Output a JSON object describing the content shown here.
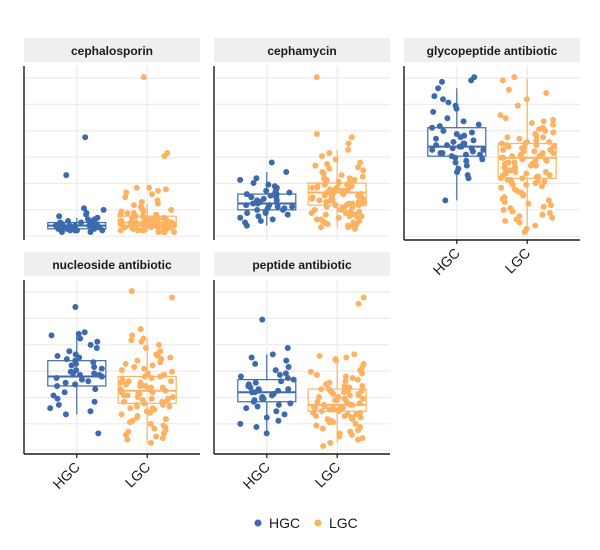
{
  "chart_data": {
    "type": "scatter",
    "subtype": "faceted boxplot with jittered points",
    "title": "",
    "xlabel": "",
    "ylabel": "",
    "grid": true,
    "y_tick_labels_shown": false,
    "legend": {
      "position": "bottom",
      "entries": [
        "HGC",
        "LGC"
      ]
    },
    "colors": {
      "HGC": "#3d6aad",
      "LGC": "#fdb262",
      "strip_bg": "#efefef"
    },
    "categories": [
      "HGC",
      "LGC"
    ],
    "facets": [
      {
        "label": "cephalosporin",
        "ylim": [
          0,
          1
        ],
        "boxes": [
          {
            "group": "HGC",
            "q1": 0.02,
            "median": 0.04,
            "q3": 0.06,
            "whisker_low": 0.0,
            "whisker_high": 0.09
          },
          {
            "group": "LGC",
            "q1": 0.04,
            "median": 0.06,
            "q3": 0.1,
            "whisker_low": 0.0,
            "whisker_high": 0.18
          }
        ],
        "series": [
          {
            "name": "HGC",
            "values": [
              0.6,
              0.36,
              0.15,
              0.14,
              0.12,
              0.11,
              0.1,
              0.09,
              0.08,
              0.08,
              0.07,
              0.07,
              0.06,
              0.06,
              0.06,
              0.05,
              0.05,
              0.05,
              0.05,
              0.04,
              0.04,
              0.04,
              0.04,
              0.04,
              0.03,
              0.03,
              0.03,
              0.03,
              0.03,
              0.02,
              0.02,
              0.02,
              0.02,
              0.02,
              0.01,
              0.01,
              0.01,
              0.01,
              0.0,
              0.0
            ]
          },
          {
            "name": "LGC",
            "values": [
              0.98,
              0.5,
              0.48,
              0.28,
              0.28,
              0.27,
              0.26,
              0.25,
              0.24,
              0.22,
              0.2,
              0.19,
              0.18,
              0.17,
              0.16,
              0.15,
              0.14,
              0.14,
              0.13,
              0.13,
              0.12,
              0.12,
              0.11,
              0.11,
              0.1,
              0.1,
              0.1,
              0.09,
              0.09,
              0.09,
              0.08,
              0.08,
              0.08,
              0.08,
              0.07,
              0.07,
              0.07,
              0.07,
              0.07,
              0.06,
              0.06,
              0.06,
              0.06,
              0.06,
              0.06,
              0.05,
              0.05,
              0.05,
              0.05,
              0.05,
              0.05,
              0.05,
              0.04,
              0.04,
              0.04,
              0.04,
              0.04,
              0.04,
              0.04,
              0.03,
              0.03,
              0.03,
              0.03,
              0.03,
              0.03,
              0.02,
              0.02,
              0.02,
              0.02,
              0.02,
              0.02,
              0.01,
              0.01,
              0.01,
              0.01,
              0.01,
              0.0,
              0.0,
              0.0,
              0.0
            ]
          }
        ]
      },
      {
        "label": "cephamycin",
        "ylim": [
          0,
          1
        ],
        "boxes": [
          {
            "group": "HGC",
            "q1": 0.14,
            "median": 0.18,
            "q3": 0.24,
            "whisker_low": 0.04,
            "whisker_high": 0.38
          },
          {
            "group": "LGC",
            "q1": 0.17,
            "median": 0.25,
            "q3": 0.31,
            "whisker_low": 0.03,
            "whisker_high": 0.52
          }
        ],
        "series": [
          {
            "name": "HGC",
            "values": [
              0.44,
              0.38,
              0.34,
              0.33,
              0.31,
              0.3,
              0.29,
              0.28,
              0.27,
              0.26,
              0.25,
              0.25,
              0.24,
              0.24,
              0.23,
              0.22,
              0.22,
              0.21,
              0.2,
              0.2,
              0.19,
              0.19,
              0.18,
              0.18,
              0.17,
              0.17,
              0.16,
              0.16,
              0.15,
              0.15,
              0.14,
              0.14,
              0.13,
              0.12,
              0.12,
              0.11,
              0.1,
              0.09,
              0.08,
              0.07,
              0.06,
              0.04
            ]
          },
          {
            "name": "LGC",
            "values": [
              0.98,
              0.62,
              0.6,
              0.56,
              0.52,
              0.5,
              0.48,
              0.46,
              0.44,
              0.43,
              0.42,
              0.41,
              0.4,
              0.39,
              0.38,
              0.37,
              0.36,
              0.35,
              0.34,
              0.34,
              0.33,
              0.33,
              0.32,
              0.32,
              0.31,
              0.31,
              0.3,
              0.3,
              0.3,
              0.29,
              0.29,
              0.28,
              0.28,
              0.28,
              0.27,
              0.27,
              0.27,
              0.26,
              0.26,
              0.26,
              0.25,
              0.25,
              0.25,
              0.25,
              0.24,
              0.24,
              0.24,
              0.23,
              0.23,
              0.23,
              0.22,
              0.22,
              0.22,
              0.21,
              0.21,
              0.21,
              0.2,
              0.2,
              0.2,
              0.19,
              0.19,
              0.19,
              0.18,
              0.18,
              0.18,
              0.17,
              0.17,
              0.17,
              0.16,
              0.16,
              0.15,
              0.15,
              0.14,
              0.14,
              0.13,
              0.13,
              0.12,
              0.12,
              0.11,
              0.11,
              0.1,
              0.1,
              0.09,
              0.09,
              0.08,
              0.08,
              0.07,
              0.07,
              0.06,
              0.06,
              0.05,
              0.05,
              0.04,
              0.04,
              0.03,
              0.03,
              0.02
            ]
          }
        ]
      },
      {
        "label": "glycopeptide antibiotic",
        "ylim": [
          0,
          1
        ],
        "boxes": [
          {
            "group": "HGC",
            "q1": 0.48,
            "median": 0.54,
            "q3": 0.66,
            "whisker_low": 0.2,
            "whisker_high": 0.91
          },
          {
            "group": "LGC",
            "q1": 0.34,
            "median": 0.47,
            "q3": 0.56,
            "whisker_low": 0.0,
            "whisker_high": 0.97
          }
        ],
        "series": [
          {
            "name": "HGC",
            "values": [
              0.98,
              0.96,
              0.95,
              0.91,
              0.86,
              0.84,
              0.82,
              0.8,
              0.78,
              0.76,
              0.72,
              0.7,
              0.68,
              0.67,
              0.66,
              0.64,
              0.63,
              0.62,
              0.61,
              0.6,
              0.59,
              0.58,
              0.57,
              0.56,
              0.56,
              0.55,
              0.55,
              0.54,
              0.54,
              0.53,
              0.53,
              0.52,
              0.52,
              0.51,
              0.51,
              0.5,
              0.5,
              0.49,
              0.49,
              0.48,
              0.47,
              0.46,
              0.45,
              0.44,
              0.42,
              0.4,
              0.38,
              0.36,
              0.34,
              0.2
            ]
          },
          {
            "name": "LGC",
            "values": [
              0.98,
              0.96,
              0.9,
              0.88,
              0.84,
              0.8,
              0.74,
              0.72,
              0.71,
              0.7,
              0.69,
              0.68,
              0.66,
              0.65,
              0.64,
              0.63,
              0.62,
              0.61,
              0.6,
              0.6,
              0.59,
              0.58,
              0.57,
              0.57,
              0.56,
              0.56,
              0.55,
              0.55,
              0.54,
              0.54,
              0.53,
              0.53,
              0.52,
              0.52,
              0.51,
              0.51,
              0.5,
              0.5,
              0.49,
              0.49,
              0.48,
              0.48,
              0.47,
              0.47,
              0.46,
              0.46,
              0.45,
              0.45,
              0.44,
              0.44,
              0.43,
              0.43,
              0.42,
              0.42,
              0.41,
              0.41,
              0.4,
              0.4,
              0.39,
              0.39,
              0.38,
              0.38,
              0.37,
              0.37,
              0.36,
              0.36,
              0.35,
              0.35,
              0.34,
              0.34,
              0.33,
              0.33,
              0.32,
              0.32,
              0.31,
              0.31,
              0.3,
              0.3,
              0.29,
              0.28,
              0.27,
              0.26,
              0.25,
              0.24,
              0.23,
              0.22,
              0.21,
              0.2,
              0.19,
              0.18,
              0.17,
              0.16,
              0.15,
              0.14,
              0.13,
              0.12,
              0.11,
              0.1,
              0.09,
              0.08,
              0.07,
              0.06,
              0.04,
              0.02,
              0.0
            ]
          }
        ]
      },
      {
        "label": "nucleoside antibiotic",
        "ylim": [
          0,
          1
        ],
        "boxes": [
          {
            "group": "HGC",
            "q1": 0.38,
            "median": 0.44,
            "q3": 0.54,
            "whisker_low": 0.2,
            "whisker_high": 0.7
          },
          {
            "group": "LGC",
            "q1": 0.27,
            "median": 0.35,
            "q3": 0.44,
            "whisker_low": 0.02,
            "whisker_high": 0.68
          }
        ],
        "series": [
          {
            "name": "HGC",
            "values": [
              0.88,
              0.72,
              0.71,
              0.7,
              0.68,
              0.66,
              0.64,
              0.62,
              0.6,
              0.58,
              0.57,
              0.56,
              0.55,
              0.54,
              0.53,
              0.52,
              0.51,
              0.5,
              0.49,
              0.48,
              0.47,
              0.46,
              0.46,
              0.45,
              0.45,
              0.44,
              0.44,
              0.43,
              0.42,
              0.41,
              0.4,
              0.39,
              0.38,
              0.36,
              0.34,
              0.32,
              0.3,
              0.28,
              0.26,
              0.24,
              0.22,
              0.2,
              0.08
            ]
          },
          {
            "name": "LGC",
            "values": [
              0.98,
              0.94,
              0.74,
              0.7,
              0.68,
              0.67,
              0.66,
              0.64,
              0.62,
              0.6,
              0.58,
              0.57,
              0.56,
              0.55,
              0.54,
              0.53,
              0.52,
              0.51,
              0.5,
              0.49,
              0.48,
              0.47,
              0.46,
              0.45,
              0.45,
              0.44,
              0.44,
              0.43,
              0.42,
              0.41,
              0.41,
              0.4,
              0.4,
              0.39,
              0.39,
              0.38,
              0.38,
              0.37,
              0.37,
              0.36,
              0.36,
              0.35,
              0.35,
              0.34,
              0.34,
              0.33,
              0.33,
              0.32,
              0.32,
              0.31,
              0.31,
              0.3,
              0.3,
              0.29,
              0.29,
              0.28,
              0.28,
              0.27,
              0.27,
              0.26,
              0.26,
              0.25,
              0.25,
              0.24,
              0.24,
              0.23,
              0.22,
              0.21,
              0.2,
              0.19,
              0.18,
              0.17,
              0.16,
              0.15,
              0.14,
              0.13,
              0.12,
              0.11,
              0.1,
              0.09,
              0.08,
              0.07,
              0.06,
              0.05,
              0.04,
              0.02
            ]
          }
        ]
      },
      {
        "label": "peptide antibiotic",
        "ylim": [
          0,
          1
        ],
        "boxes": [
          {
            "group": "HGC",
            "q1": 0.28,
            "median": 0.34,
            "q3": 0.42,
            "whisker_low": 0.08,
            "whisker_high": 0.58
          },
          {
            "group": "LGC",
            "q1": 0.22,
            "median": 0.26,
            "q3": 0.36,
            "whisker_low": 0.02,
            "whisker_high": 0.56
          }
        ],
        "series": [
          {
            "name": "HGC",
            "values": [
              0.8,
              0.62,
              0.58,
              0.56,
              0.54,
              0.52,
              0.5,
              0.48,
              0.46,
              0.45,
              0.44,
              0.43,
              0.42,
              0.41,
              0.4,
              0.39,
              0.38,
              0.37,
              0.36,
              0.36,
              0.35,
              0.35,
              0.34,
              0.34,
              0.33,
              0.32,
              0.31,
              0.3,
              0.3,
              0.29,
              0.28,
              0.27,
              0.26,
              0.25,
              0.24,
              0.22,
              0.2,
              0.18,
              0.16,
              0.14,
              0.12,
              0.08
            ]
          },
          {
            "name": "LGC",
            "values": [
              0.94,
              0.9,
              0.58,
              0.57,
              0.56,
              0.55,
              0.54,
              0.52,
              0.5,
              0.48,
              0.47,
              0.46,
              0.45,
              0.44,
              0.43,
              0.42,
              0.41,
              0.4,
              0.39,
              0.38,
              0.38,
              0.37,
              0.37,
              0.36,
              0.36,
              0.35,
              0.35,
              0.34,
              0.34,
              0.33,
              0.33,
              0.32,
              0.32,
              0.31,
              0.31,
              0.3,
              0.3,
              0.29,
              0.29,
              0.28,
              0.28,
              0.27,
              0.27,
              0.26,
              0.26,
              0.26,
              0.25,
              0.25,
              0.25,
              0.24,
              0.24,
              0.24,
              0.23,
              0.23,
              0.23,
              0.22,
              0.22,
              0.21,
              0.21,
              0.2,
              0.2,
              0.19,
              0.19,
              0.18,
              0.18,
              0.17,
              0.17,
              0.16,
              0.16,
              0.15,
              0.15,
              0.14,
              0.13,
              0.12,
              0.11,
              0.1,
              0.09,
              0.08,
              0.07,
              0.06,
              0.05,
              0.04,
              0.02,
              0.0
            ]
          }
        ]
      }
    ]
  }
}
